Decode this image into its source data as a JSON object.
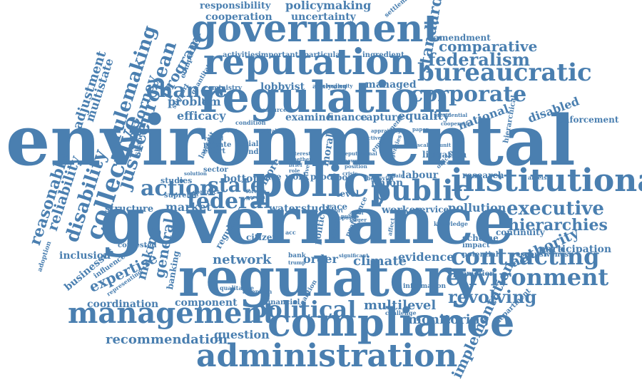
{
  "colors": {
    "primary": "#4a7fb0",
    "light": "#7ea6cc"
  },
  "words": [
    "environmental",
    "governance",
    "regulatory",
    "regulation",
    "government",
    "reputation",
    "compliance",
    "administration",
    "management",
    "institutional",
    "policy",
    "public",
    "bureaucratic",
    "corporate",
    "environment",
    "contracting",
    "political",
    "executive",
    "hierarchies",
    "federalism",
    "comparative",
    "revolving",
    "action",
    "federal",
    "state",
    "change",
    "collective",
    "european",
    "rulemaking",
    "justice",
    "disability",
    "reasonable",
    "reliability",
    "attorney",
    "adjustment",
    "multistate",
    "program",
    "standard",
    "responsibility",
    "policymaking",
    "cooperation",
    "uncertainty",
    "amendment",
    "lobbyist",
    "managed",
    "equality",
    "efficacy",
    "problem",
    "examine",
    "finance",
    "capture",
    "national",
    "disabled",
    "enforcement",
    "authority",
    "participation",
    "continuity",
    "scheme",
    "impact",
    "potential",
    "responsiveness",
    "promotion",
    "evidence",
    "climate",
    "order",
    "network",
    "expertise",
    "making",
    "general",
    "coordination",
    "component",
    "question",
    "recommendation",
    "multilevel",
    "monitoring",
    "implementation",
    "department",
    "market",
    "structure",
    "inclusion",
    "businesses",
    "influence",
    "contested",
    "banking",
    "regulator",
    "citizen",
    "water",
    "study",
    "worker",
    "service",
    "pollution",
    "research",
    "labour",
    "union",
    "litigation",
    "bottom",
    "sector",
    "effort",
    "private",
    "social",
    "trend",
    "studies",
    "supreme",
    "contract",
    "politic",
    "moral",
    "more",
    "case",
    "work",
    "proc",
    "door",
    "level",
    "race",
    "acc",
    "bank",
    "trump",
    "agency",
    "preference",
    "affect",
    "knowledge",
    "ableism",
    "hierarchical",
    "cooperative",
    "presidential",
    "complexity",
    "analysing",
    "ministry",
    "activities",
    "important",
    "particular",
    "ingredient",
    "settlement",
    "competition",
    "support",
    "qualitative",
    "quantitative",
    "resource",
    "condition",
    "reveal",
    "lawsuit",
    "shape",
    "financial",
    "attention",
    "coalition",
    "challenge",
    "information",
    "adoption",
    "representing",
    "significant",
    "behavior",
    "affair",
    "official",
    "control",
    "agencies",
    "employment",
    "reputational",
    "power",
    "position",
    "interest",
    "whether",
    "brief",
    "role",
    "foreign",
    "person",
    "solution",
    "initiative",
    "crisis",
    "public",
    "proposal",
    "court",
    "actor",
    "larger",
    "paper",
    "fiscal",
    "unit",
    "result",
    "central",
    "selective",
    "appraising"
  ]
}
